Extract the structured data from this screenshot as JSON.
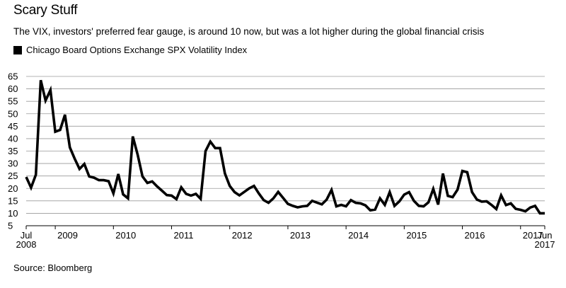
{
  "title": "Scary Stuff",
  "subtitle": "The VIX, investors' preferred fear gauge, is around 10 now, but was a lot higher during the global financial crisis",
  "legend_label": "Chicago Board Options Exchange SPX Volatility Index",
  "source": "Source: Bloomberg",
  "chart_data": {
    "type": "line",
    "series": [
      {
        "name": "Chicago Board Options Exchange SPX Volatility Index",
        "color": "#000000",
        "points": [
          [
            "2008-07",
            24.6
          ],
          [
            "2008-08",
            20.3
          ],
          [
            "2008-09",
            25.5
          ],
          [
            "2008-10",
            63.5
          ],
          [
            "2008-11",
            55.3
          ],
          [
            "2008-12",
            59.5
          ],
          [
            "2009-01",
            42.8
          ],
          [
            "2009-02",
            43.5
          ],
          [
            "2009-03",
            49.6
          ],
          [
            "2009-04",
            36.5
          ],
          [
            "2009-05",
            32.0
          ],
          [
            "2009-06",
            27.8
          ],
          [
            "2009-07",
            29.8
          ],
          [
            "2009-08",
            24.8
          ],
          [
            "2009-09",
            24.3
          ],
          [
            "2009-10",
            23.3
          ],
          [
            "2009-11",
            23.3
          ],
          [
            "2009-12",
            22.9
          ],
          [
            "2010-01",
            18.0
          ],
          [
            "2010-02",
            25.8
          ],
          [
            "2010-03",
            17.6
          ],
          [
            "2010-04",
            16.0
          ],
          [
            "2010-05",
            40.9
          ],
          [
            "2010-06",
            33.5
          ],
          [
            "2010-07",
            24.8
          ],
          [
            "2010-08",
            22.2
          ],
          [
            "2010-09",
            22.8
          ],
          [
            "2010-10",
            20.8
          ],
          [
            "2010-11",
            19.1
          ],
          [
            "2010-12",
            17.3
          ],
          [
            "2011-01",
            17.1
          ],
          [
            "2011-02",
            15.7
          ],
          [
            "2011-03",
            20.4
          ],
          [
            "2011-04",
            17.8
          ],
          [
            "2011-05",
            17.1
          ],
          [
            "2011-06",
            17.8
          ],
          [
            "2011-07",
            15.8
          ],
          [
            "2011-08",
            35.0
          ],
          [
            "2011-09",
            38.8
          ],
          [
            "2011-10",
            36.2
          ],
          [
            "2011-11",
            36.2
          ],
          [
            "2011-12",
            26.0
          ],
          [
            "2012-01",
            21.0
          ],
          [
            "2012-02",
            18.5
          ],
          [
            "2012-03",
            17.2
          ],
          [
            "2012-04",
            18.6
          ],
          [
            "2012-05",
            20.0
          ],
          [
            "2012-06",
            21.0
          ],
          [
            "2012-07",
            18.0
          ],
          [
            "2012-08",
            15.3
          ],
          [
            "2012-09",
            14.2
          ],
          [
            "2012-10",
            16.0
          ],
          [
            "2012-11",
            18.6
          ],
          [
            "2012-12",
            16.2
          ],
          [
            "2013-01",
            13.8
          ],
          [
            "2013-02",
            13.0
          ],
          [
            "2013-03",
            12.4
          ],
          [
            "2013-04",
            12.8
          ],
          [
            "2013-05",
            13.0
          ],
          [
            "2013-06",
            15.0
          ],
          [
            "2013-07",
            14.3
          ],
          [
            "2013-08",
            13.6
          ],
          [
            "2013-09",
            15.5
          ],
          [
            "2013-10",
            19.4
          ],
          [
            "2013-11",
            12.8
          ],
          [
            "2013-12",
            13.4
          ],
          [
            "2014-01",
            12.8
          ],
          [
            "2014-02",
            15.3
          ],
          [
            "2014-03",
            14.2
          ],
          [
            "2014-04",
            14.0
          ],
          [
            "2014-05",
            13.2
          ],
          [
            "2014-06",
            11.2
          ],
          [
            "2014-07",
            11.5
          ],
          [
            "2014-08",
            16.0
          ],
          [
            "2014-09",
            13.4
          ],
          [
            "2014-10",
            18.5
          ],
          [
            "2014-11",
            13.0
          ],
          [
            "2014-12",
            14.8
          ],
          [
            "2015-01",
            17.5
          ],
          [
            "2015-02",
            18.5
          ],
          [
            "2015-03",
            15.0
          ],
          [
            "2015-04",
            13.0
          ],
          [
            "2015-05",
            12.8
          ],
          [
            "2015-06",
            14.4
          ],
          [
            "2015-07",
            19.8
          ],
          [
            "2015-08",
            13.5
          ],
          [
            "2015-09",
            26.0
          ],
          [
            "2015-10",
            17.0
          ],
          [
            "2015-11",
            16.5
          ],
          [
            "2015-12",
            19.5
          ],
          [
            "2016-01",
            27.0
          ],
          [
            "2016-02",
            26.5
          ],
          [
            "2016-03",
            18.5
          ],
          [
            "2016-04",
            15.5
          ],
          [
            "2016-05",
            14.7
          ],
          [
            "2016-06",
            14.8
          ],
          [
            "2016-07",
            13.4
          ],
          [
            "2016-08",
            11.7
          ],
          [
            "2016-09",
            17.2
          ],
          [
            "2016-10",
            13.3
          ],
          [
            "2016-11",
            14.0
          ],
          [
            "2016-12",
            11.8
          ],
          [
            "2017-01",
            11.4
          ],
          [
            "2017-02",
            10.8
          ],
          [
            "2017-03",
            12.3
          ],
          [
            "2017-04",
            13.0
          ],
          [
            "2017-05",
            10.0
          ],
          [
            "2017-06",
            10.0
          ]
        ]
      }
    ],
    "ylim": [
      5,
      65
    ],
    "yticks": [
      5,
      10,
      15,
      20,
      25,
      30,
      35,
      40,
      45,
      50,
      55,
      60,
      65
    ],
    "xlim": [
      "2008-07",
      "2017-06"
    ],
    "xticks": [
      {
        "at": "2008-07",
        "label": "Jul",
        "sublabel": "2008"
      },
      {
        "at": "2009-01",
        "label": "2009"
      },
      {
        "at": "2010-01",
        "label": "2010"
      },
      {
        "at": "2011-01",
        "label": "2011"
      },
      {
        "at": "2012-01",
        "label": "2012"
      },
      {
        "at": "2013-01",
        "label": "2013"
      },
      {
        "at": "2014-01",
        "label": "2014"
      },
      {
        "at": "2015-01",
        "label": "2015"
      },
      {
        "at": "2016-01",
        "label": "2016"
      },
      {
        "at": "2017-01",
        "label": "2017"
      },
      {
        "at": "2017-06",
        "label": "Jun",
        "sublabel": "2017"
      }
    ],
    "grid": true,
    "legend_position": "top-left"
  }
}
